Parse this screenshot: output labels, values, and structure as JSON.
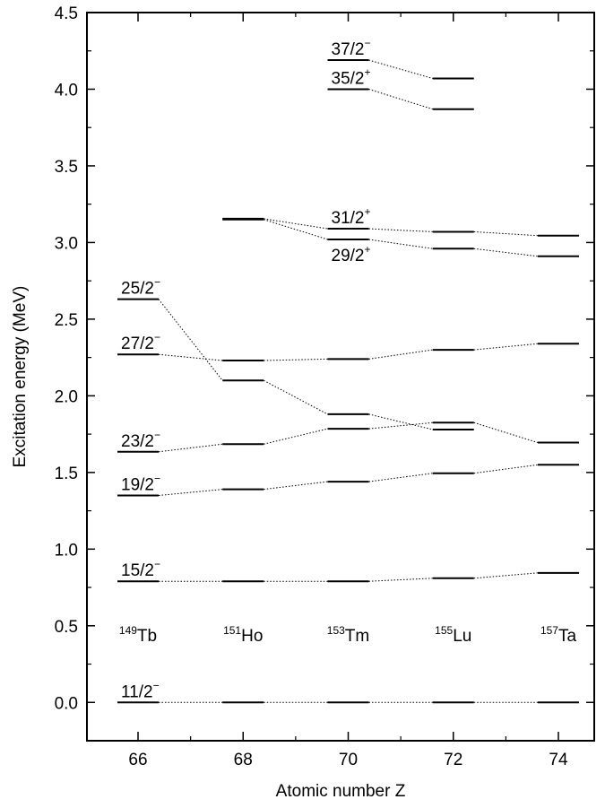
{
  "chart_data": {
    "type": "level-scheme",
    "xlabel": "Atomic number Z",
    "ylabel": "Excitation energy (MeV)",
    "xlim": [
      65,
      75
    ],
    "ylim": [
      -0.25,
      4.5
    ],
    "x_ticks": [
      "66",
      "68",
      "70",
      "72",
      "74"
    ],
    "y_ticks": [
      "0.0",
      "0.5",
      "1.0",
      "1.5",
      "2.0",
      "2.5",
      "3.0",
      "3.5",
      "4.0",
      "4.5"
    ],
    "nuclei": [
      {
        "z": 66,
        "mass": "149",
        "symbol": "Tb"
      },
      {
        "z": 68,
        "mass": "151",
        "symbol": "Ho"
      },
      {
        "z": 70,
        "mass": "153",
        "symbol": "Tm"
      },
      {
        "z": 72,
        "mass": "155",
        "symbol": "Lu"
      },
      {
        "z": 74,
        "mass": "157",
        "symbol": "Ta"
      }
    ],
    "series": [
      {
        "spin": "11/2",
        "parity": "−",
        "label_z": 66,
        "label_pos": "above",
        "points": [
          [
            66,
            0.0
          ],
          [
            68,
            0.0
          ],
          [
            70,
            0.0
          ],
          [
            72,
            0.0
          ],
          [
            74,
            0.0
          ]
        ]
      },
      {
        "spin": "15/2",
        "parity": "−",
        "label_z": 66,
        "label_pos": "above",
        "points": [
          [
            66,
            0.79
          ],
          [
            68,
            0.79
          ],
          [
            70,
            0.79
          ],
          [
            72,
            0.81
          ],
          [
            74,
            0.845
          ]
        ]
      },
      {
        "spin": "19/2",
        "parity": "−",
        "label_z": 66,
        "label_pos": "above",
        "points": [
          [
            66,
            1.35
          ],
          [
            68,
            1.39
          ],
          [
            70,
            1.44
          ],
          [
            72,
            1.495
          ],
          [
            74,
            1.55
          ]
        ]
      },
      {
        "spin": "23/2",
        "parity": "−",
        "label_z": 66,
        "label_pos": "above",
        "points": [
          [
            66,
            1.635
          ],
          [
            68,
            1.685
          ],
          [
            70,
            1.785
          ],
          [
            72,
            1.825
          ],
          [
            74,
            1.695
          ]
        ]
      },
      {
        "spin": "27/2",
        "parity": "−",
        "label_z": 66,
        "label_pos": "above",
        "points": [
          [
            66,
            2.27
          ],
          [
            68,
            2.23
          ],
          [
            70,
            2.24
          ],
          [
            72,
            2.3
          ],
          [
            74,
            2.34
          ]
        ]
      },
      {
        "spin": "25/2",
        "parity": "−",
        "label_z": 66,
        "label_pos": "above",
        "points": [
          [
            66,
            2.63
          ],
          [
            68,
            2.1
          ],
          [
            70,
            1.88
          ],
          [
            72,
            1.78
          ]
        ]
      },
      {
        "spin": "29/2",
        "parity": "+",
        "label_z": 70,
        "label_pos": "below",
        "points": [
          [
            68,
            3.15
          ],
          [
            70,
            3.02
          ],
          [
            72,
            2.96
          ],
          [
            74,
            2.91
          ]
        ]
      },
      {
        "spin": "31/2",
        "parity": "+",
        "label_z": 70,
        "label_pos": "above",
        "points": [
          [
            68,
            3.155
          ],
          [
            70,
            3.09
          ],
          [
            72,
            3.07
          ],
          [
            74,
            3.045
          ]
        ]
      },
      {
        "spin": "35/2",
        "parity": "+",
        "label_z": 70,
        "label_pos": "above",
        "points": [
          [
            70,
            4.0
          ],
          [
            72,
            3.87
          ]
        ]
      },
      {
        "spin": "37/2",
        "parity": "−",
        "label_z": 70,
        "label_pos": "above",
        "points": [
          [
            70,
            4.19
          ],
          [
            72,
            4.07
          ]
        ]
      }
    ]
  }
}
